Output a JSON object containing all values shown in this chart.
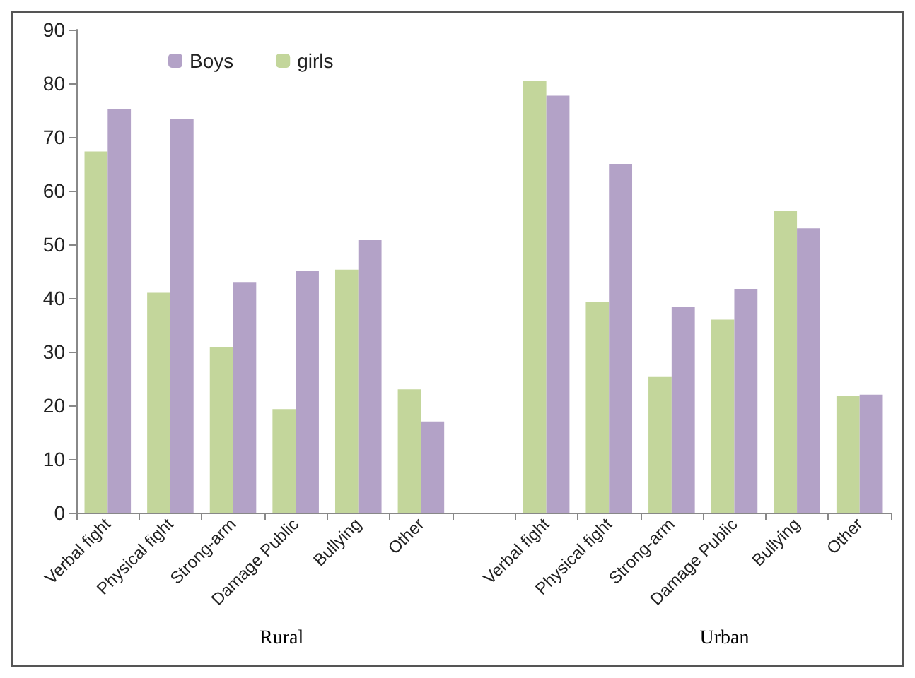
{
  "chart_data": {
    "type": "bar",
    "categories": [
      "Verbal fight",
      "Physical fight",
      "Strong-arm",
      "Damage Public",
      "Bullying",
      "Other",
      null,
      "Verbal fight",
      "Physical fight",
      "Strong-arm",
      "Damage Public",
      "Bullying",
      "Other"
    ],
    "series": [
      {
        "name": "girls",
        "color": "#c3d69b",
        "values": [
          67.3,
          41,
          30.8,
          19.3,
          45.3,
          23,
          null,
          80.5,
          39.3,
          25.3,
          36,
          56.2,
          21.7
        ]
      },
      {
        "name": "Boys",
        "color": "#b3a2c7",
        "values": [
          75.2,
          73.3,
          43,
          45,
          50.8,
          17,
          null,
          77.7,
          65,
          38.3,
          41.7,
          53,
          22
        ]
      }
    ],
    "ylim": [
      0,
      90
    ],
    "yticks": [
      0,
      10,
      20,
      30,
      40,
      50,
      60,
      70,
      80,
      90
    ],
    "grid": false,
    "legend": "top left",
    "annotations": [
      "Rural",
      "Urban"
    ]
  }
}
